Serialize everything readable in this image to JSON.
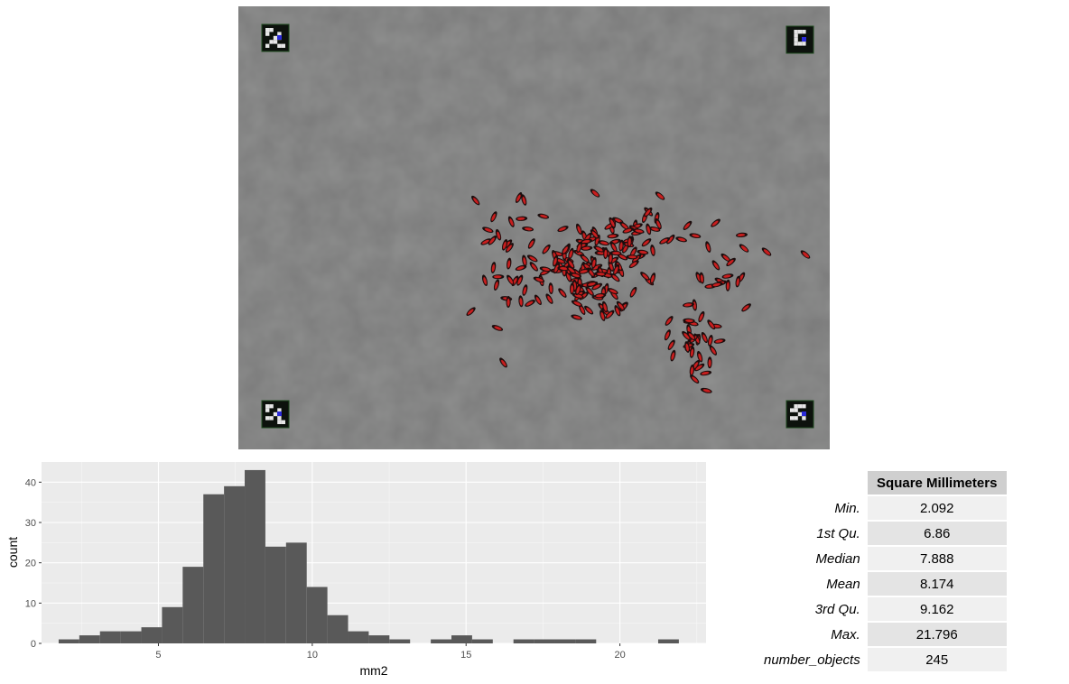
{
  "image": {
    "background_color": "#7a7a7a",
    "marker_icons": [
      "aruco-marker-top-left-icon",
      "aruco-marker-top-right-icon",
      "aruco-marker-bottom-left-icon",
      "aruco-marker-bottom-right-icon"
    ],
    "object_color": "#c81e1e"
  },
  "chart_data": {
    "type": "bar",
    "xlabel": "mm2",
    "ylabel": "count",
    "xlim": [
      1.2,
      22.8
    ],
    "ylim": [
      0,
      45
    ],
    "x_ticks": [
      5,
      10,
      15,
      20
    ],
    "y_ticks": [
      0,
      10,
      20,
      30,
      40
    ],
    "bin_width": 0.672,
    "bin_starts": [
      1.756,
      2.428,
      3.1,
      3.772,
      4.444,
      5.116,
      5.788,
      6.46,
      7.132,
      7.804,
      8.476,
      9.148,
      9.82,
      10.492,
      11.164,
      11.836,
      12.508,
      13.18,
      13.852,
      14.524,
      15.196,
      15.868,
      16.54,
      17.212,
      17.884,
      18.556,
      19.228,
      19.9,
      20.572,
      21.244
    ],
    "values": [
      1,
      2,
      3,
      3,
      4,
      9,
      19,
      37,
      39,
      43,
      24,
      25,
      14,
      7,
      3,
      2,
      1,
      0,
      1,
      2,
      1,
      0,
      1,
      1,
      1,
      1,
      0,
      0,
      0,
      1
    ],
    "grid": true,
    "bar_color": "#595959",
    "panel_color": "#ebebeb"
  },
  "stats_table": {
    "header": "Square Millimeters",
    "rows": [
      {
        "label": "Min.",
        "value": "2.092"
      },
      {
        "label": "1st Qu.",
        "value": "6.86"
      },
      {
        "label": "Median",
        "value": "7.888"
      },
      {
        "label": "Mean",
        "value": "8.174"
      },
      {
        "label": "3rd Qu.",
        "value": "9.162"
      },
      {
        "label": "Max.",
        "value": "21.796"
      },
      {
        "label": "number_objects",
        "value": "245"
      }
    ]
  }
}
